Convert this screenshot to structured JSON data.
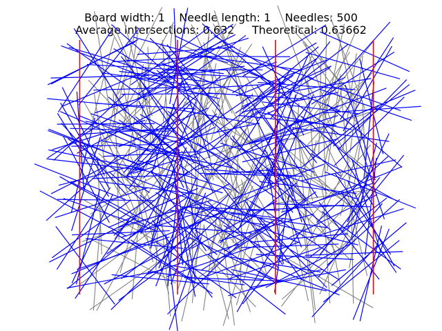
{
  "chart_data": {
    "type": "scatter",
    "title_line1": "Board width: 1    Needle length: 1    Needles: 500",
    "title_line2": "Average intersections: 0.632     Theoretical: 0.63662",
    "board_width": 1,
    "needle_length": 1,
    "needles": 500,
    "average_intersections": 0.632,
    "theoretical": 0.63662,
    "board_lines_x": [
      0,
      1,
      2,
      3
    ],
    "xlim": [
      -0.25,
      3.25
    ],
    "ylim": [
      -0.1,
      2.5
    ],
    "grid": false,
    "axes_visible": false,
    "colors": {
      "board_line": "#ff0000",
      "crossing_needle": "#0000ff",
      "non_crossing_needle": "#808080"
    }
  }
}
